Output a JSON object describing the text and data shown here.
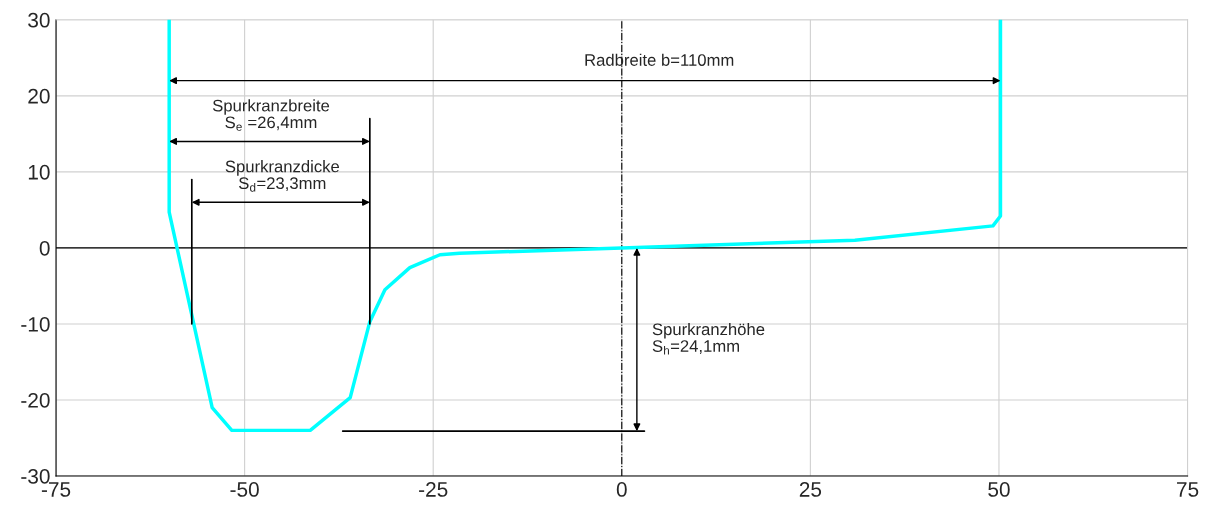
{
  "chart_data": {
    "type": "line",
    "series": [
      {
        "color": "#00ffff",
        "x": [
          -60,
          -60,
          -54.3,
          -51.7,
          -41.3,
          -36,
          -33.4,
          -31.4,
          -28.1,
          -24.1,
          -21.5,
          0,
          30.9,
          49.2,
          50.2,
          50.2
        ],
        "values": [
          30,
          4.7,
          -21,
          -24,
          -24,
          -19.7,
          -9.7,
          -5.5,
          -2.6,
          -0.9,
          -0.7,
          0,
          1,
          2.9,
          4.2,
          30
        ]
      },
      {
        "color": "#000000",
        "x": [
          -57,
          -57
        ],
        "values": [
          9,
          -10
        ]
      },
      {
        "color": "#000000",
        "x": [
          -33.4,
          -33.4
        ],
        "values": [
          17,
          -10
        ]
      },
      {
        "color": "#000000",
        "x": [
          -37,
          3
        ],
        "values": [
          -24.1,
          -24.1
        ]
      }
    ],
    "xlim": [
      -75,
      75
    ],
    "xticks": [
      -75,
      -50,
      -25,
      0,
      25,
      50,
      75
    ],
    "ylim": [
      -30,
      30
    ],
    "yticks": [
      -30,
      -20,
      -10,
      0,
      10,
      20,
      30
    ],
    "grid": true,
    "marker": "none",
    "line_style": "solid",
    "ref_lines": [
      {
        "axis": "y",
        "value": 0,
        "color": "#000000",
        "line_style": "solid"
      },
      {
        "axis": "x",
        "value": 0,
        "color": "#000000",
        "line_style": "dashdot"
      }
    ],
    "annotations": [
      "Radbreite b=110mm",
      "Spurkranzbreite\nS$_{e}$ =26,4mm",
      "Spurkranzdicke\nS$_{d}$=23,3mm",
      "Spurkranzhöhe\nS$_{h}$=24,1mm"
    ]
  }
}
